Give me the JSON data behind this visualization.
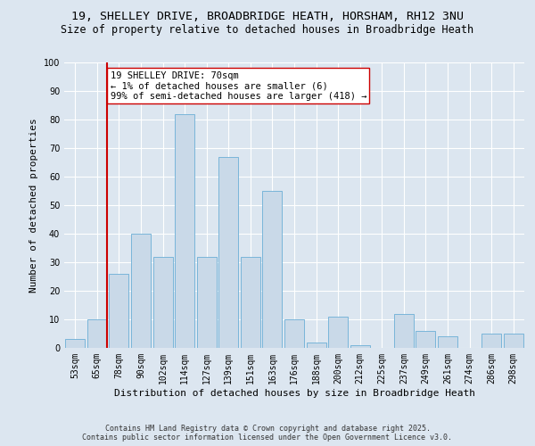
{
  "title1": "19, SHELLEY DRIVE, BROADBRIDGE HEATH, HORSHAM, RH12 3NU",
  "title2": "Size of property relative to detached houses in Broadbridge Heath",
  "xlabel": "Distribution of detached houses by size in Broadbridge Heath",
  "ylabel": "Number of detached properties",
  "categories": [
    "53sqm",
    "65sqm",
    "78sqm",
    "90sqm",
    "102sqm",
    "114sqm",
    "127sqm",
    "139sqm",
    "151sqm",
    "163sqm",
    "176sqm",
    "188sqm",
    "200sqm",
    "212sqm",
    "225sqm",
    "237sqm",
    "249sqm",
    "261sqm",
    "274sqm",
    "286sqm",
    "298sqm"
  ],
  "values": [
    3,
    10,
    26,
    40,
    32,
    82,
    32,
    67,
    32,
    55,
    10,
    2,
    11,
    1,
    0,
    12,
    6,
    4,
    0,
    5,
    5
  ],
  "bar_color": "#c9d9e8",
  "bar_edge_color": "#6baed6",
  "highlight_index": 1,
  "highlight_line_color": "#cc0000",
  "annotation_text": "19 SHELLEY DRIVE: 70sqm\n← 1% of detached houses are smaller (6)\n99% of semi-detached houses are larger (418) →",
  "annotation_box_color": "#ffffff",
  "annotation_box_edge": "#cc0000",
  "ylim": [
    0,
    100
  ],
  "yticks": [
    0,
    10,
    20,
    30,
    40,
    50,
    60,
    70,
    80,
    90,
    100
  ],
  "background_color": "#dce6f0",
  "plot_bg_color": "#dce6f0",
  "footer1": "Contains HM Land Registry data © Crown copyright and database right 2025.",
  "footer2": "Contains public sector information licensed under the Open Government Licence v3.0.",
  "title_fontsize": 9.5,
  "subtitle_fontsize": 8.5,
  "axis_label_fontsize": 8,
  "tick_fontsize": 7,
  "annotation_fontsize": 7.5,
  "footer_fontsize": 6
}
